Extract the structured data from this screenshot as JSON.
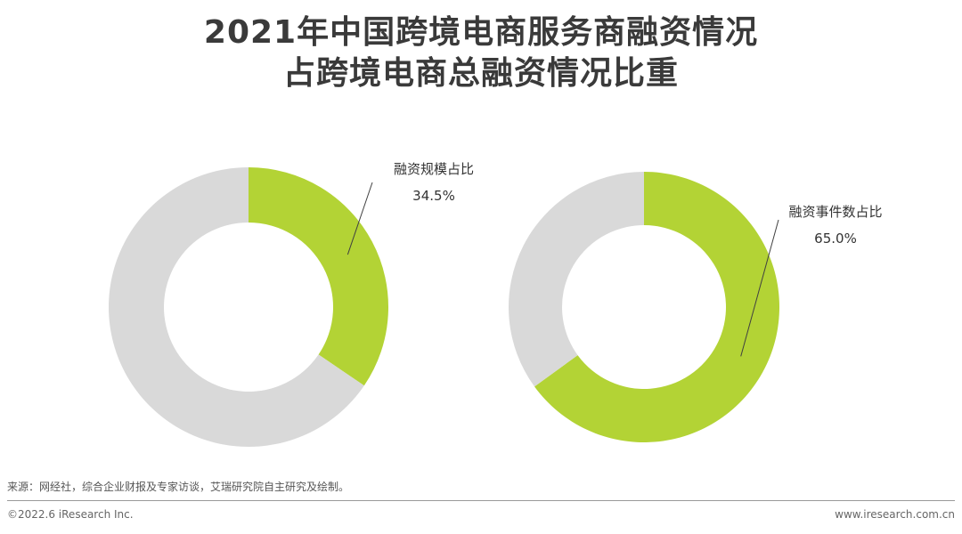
{
  "title": {
    "line1": "2021年中国跨境电商服务商融资情况",
    "line2": "占跨境电商总融资情况比重"
  },
  "chart_data": [
    {
      "type": "pie",
      "variant": "donut",
      "slices": [
        {
          "label": "融资规模占比",
          "value": 34.5,
          "value_label": "34.5%",
          "color": "#b3d335"
        },
        {
          "label": "",
          "value": 65.5,
          "color": "#d9d9d9"
        }
      ]
    },
    {
      "type": "pie",
      "variant": "donut",
      "slices": [
        {
          "label": "融资事件数占比",
          "value": 65.0,
          "value_label": "65.0%",
          "color": "#b3d335"
        },
        {
          "label": "",
          "value": 35.0,
          "color": "#d9d9d9"
        }
      ]
    }
  ],
  "colors": {
    "highlight": "#b3d335",
    "remainder": "#d9d9d9",
    "leader_line": "#404040"
  },
  "footer": {
    "source": "来源：网经社，综合企业财报及专家访谈，艾瑞研究院自主研究及绘制。",
    "copyright": "©2022.6 iResearch Inc.",
    "website": "www.iresearch.com.cn"
  }
}
